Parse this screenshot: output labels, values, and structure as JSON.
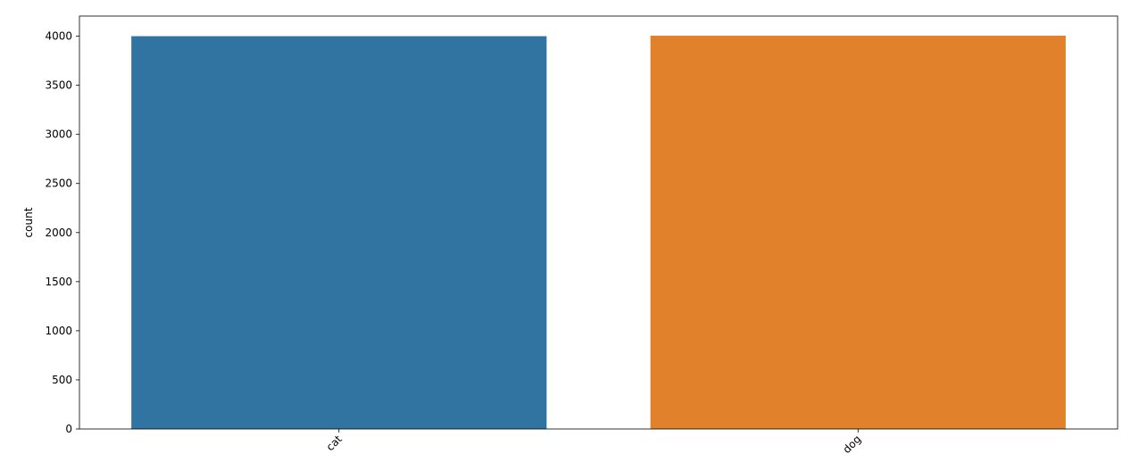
{
  "chart_data": {
    "type": "bar",
    "title": "",
    "xlabel": "",
    "ylabel": "count",
    "categories": [
      "cat",
      "dog"
    ],
    "values": [
      4000,
      4005
    ],
    "ylim": [
      0,
      4205
    ],
    "yticks": [
      0,
      500,
      1000,
      1500,
      2000,
      2500,
      3000,
      3500,
      4000
    ],
    "ytick_labels": [
      "0",
      "500",
      "1000",
      "1500",
      "2000",
      "2500",
      "3000",
      "3500",
      "4000"
    ],
    "colors": [
      "#3274a1",
      "#e1812c"
    ],
    "grid": false,
    "legend": "none",
    "xtick_rotation_deg": 45
  }
}
